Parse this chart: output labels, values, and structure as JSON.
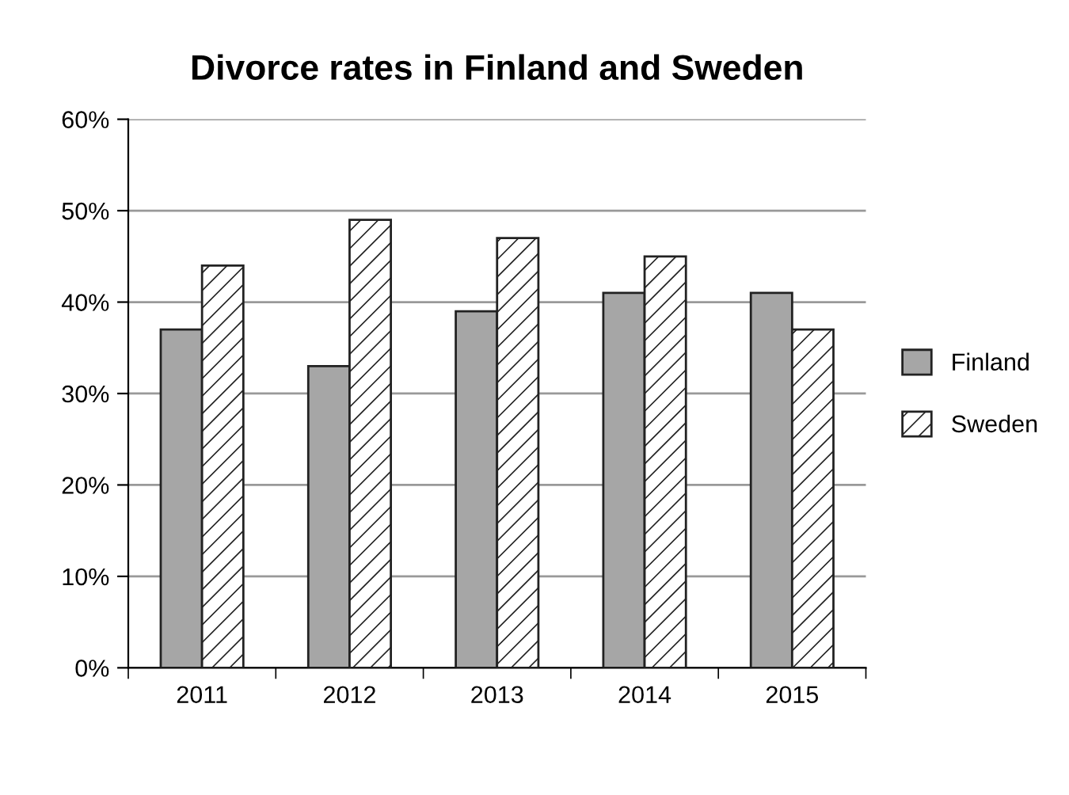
{
  "chart_data": {
    "type": "bar",
    "title": "Divorce rates in Finland and Sweden",
    "categories": [
      "2011",
      "2012",
      "2013",
      "2014",
      "2015"
    ],
    "series": [
      {
        "name": "Finland",
        "color": "#a6a6a6",
        "values": [
          37,
          33,
          39,
          41,
          41
        ]
      },
      {
        "name": "Sweden",
        "color": "#222222",
        "values": [
          44,
          49,
          47,
          45,
          37
        ]
      }
    ],
    "ylim": [
      0,
      60
    ],
    "yticks": [
      {
        "value": 0,
        "label": "0%"
      },
      {
        "value": 10,
        "label": "10%"
      },
      {
        "value": 20,
        "label": "20%"
      },
      {
        "value": 30,
        "label": "30%"
      },
      {
        "value": 40,
        "label": "40%"
      },
      {
        "value": 50,
        "label": "50%"
      },
      {
        "value": 60,
        "label": "60%"
      }
    ],
    "grid": "y",
    "legend": "right"
  }
}
